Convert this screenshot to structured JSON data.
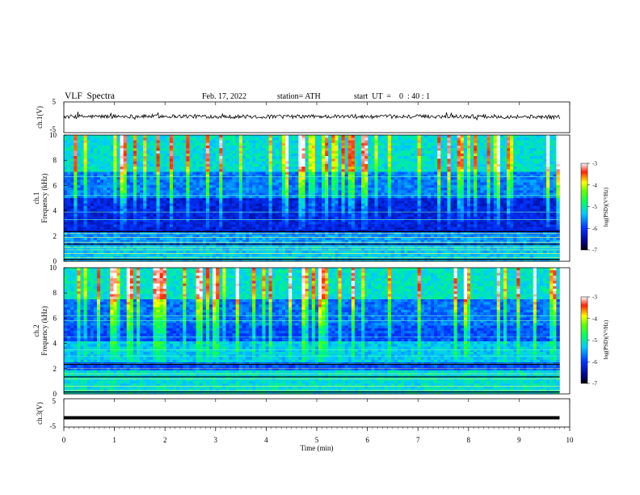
{
  "header": {
    "title": "VLF  Spectra",
    "date": "Feb. 17, 2022",
    "station": "station= ATH",
    "start_ut": "start  UT  =    0  : 40 : 1"
  },
  "chart_data": [
    {
      "type": "line",
      "panel": "ch1-waveform",
      "ylabel": "ch.1(V)",
      "ylim": [
        -5,
        5
      ],
      "yticks": [
        "5",
        "-5"
      ],
      "x": [
        0,
        1,
        2,
        3,
        4,
        5,
        6,
        7,
        8,
        9,
        9.8
      ],
      "values": [
        0.2,
        0.3,
        0.4,
        0.3,
        0.2,
        0.3,
        0.2,
        0.3,
        0.3,
        0.2,
        0.1
      ],
      "color": "#000000"
    },
    {
      "type": "heatmap",
      "panel": "ch1-spectrogram",
      "ylabel": "ch.1\nFrequency (kHz)",
      "ylabel_lines": [
        "ch.1",
        "Frequency  (kHz)"
      ],
      "ylim": [
        0,
        10
      ],
      "yticks": [
        "0",
        "2",
        "4",
        "6",
        "8",
        "10"
      ],
      "xlim": [
        0,
        9.8
      ],
      "colorbar": {
        "label": "log(PSD)(V²/Hz)",
        "range": [
          -7,
          -3
        ],
        "ticks": [
          "-3",
          "-4",
          "-5",
          "-6",
          "-7"
        ]
      }
    },
    {
      "type": "heatmap",
      "panel": "ch2-spectrogram",
      "ylabel": "ch.2\nFrequency (kHz)",
      "ylabel_lines": [
        "ch.2",
        "Frequency  (kHz)"
      ],
      "ylim": [
        0,
        10
      ],
      "yticks": [
        "0",
        "2",
        "4",
        "6",
        "8",
        "10"
      ],
      "xlim": [
        0,
        9.8
      ],
      "colorbar": {
        "label": "log(PSD)(V²/Hz)",
        "range": [
          -7,
          -3
        ],
        "ticks": [
          "-3",
          "-4",
          "-5",
          "-6",
          "-7"
        ]
      }
    },
    {
      "type": "line",
      "panel": "ch3-waveform",
      "ylabel": "ch.3(V)",
      "ylim": [
        -5,
        5
      ],
      "yticks": [
        "5",
        "-5"
      ],
      "x": [
        0,
        9.8
      ],
      "values": [
        -2,
        -2
      ],
      "color": "#000000"
    }
  ],
  "xaxis": {
    "label": "Time  (min)",
    "range": [
      0,
      10
    ],
    "ticks": [
      "0",
      "1",
      "2",
      "3",
      "4",
      "5",
      "6",
      "7",
      "8",
      "9",
      "10"
    ]
  }
}
